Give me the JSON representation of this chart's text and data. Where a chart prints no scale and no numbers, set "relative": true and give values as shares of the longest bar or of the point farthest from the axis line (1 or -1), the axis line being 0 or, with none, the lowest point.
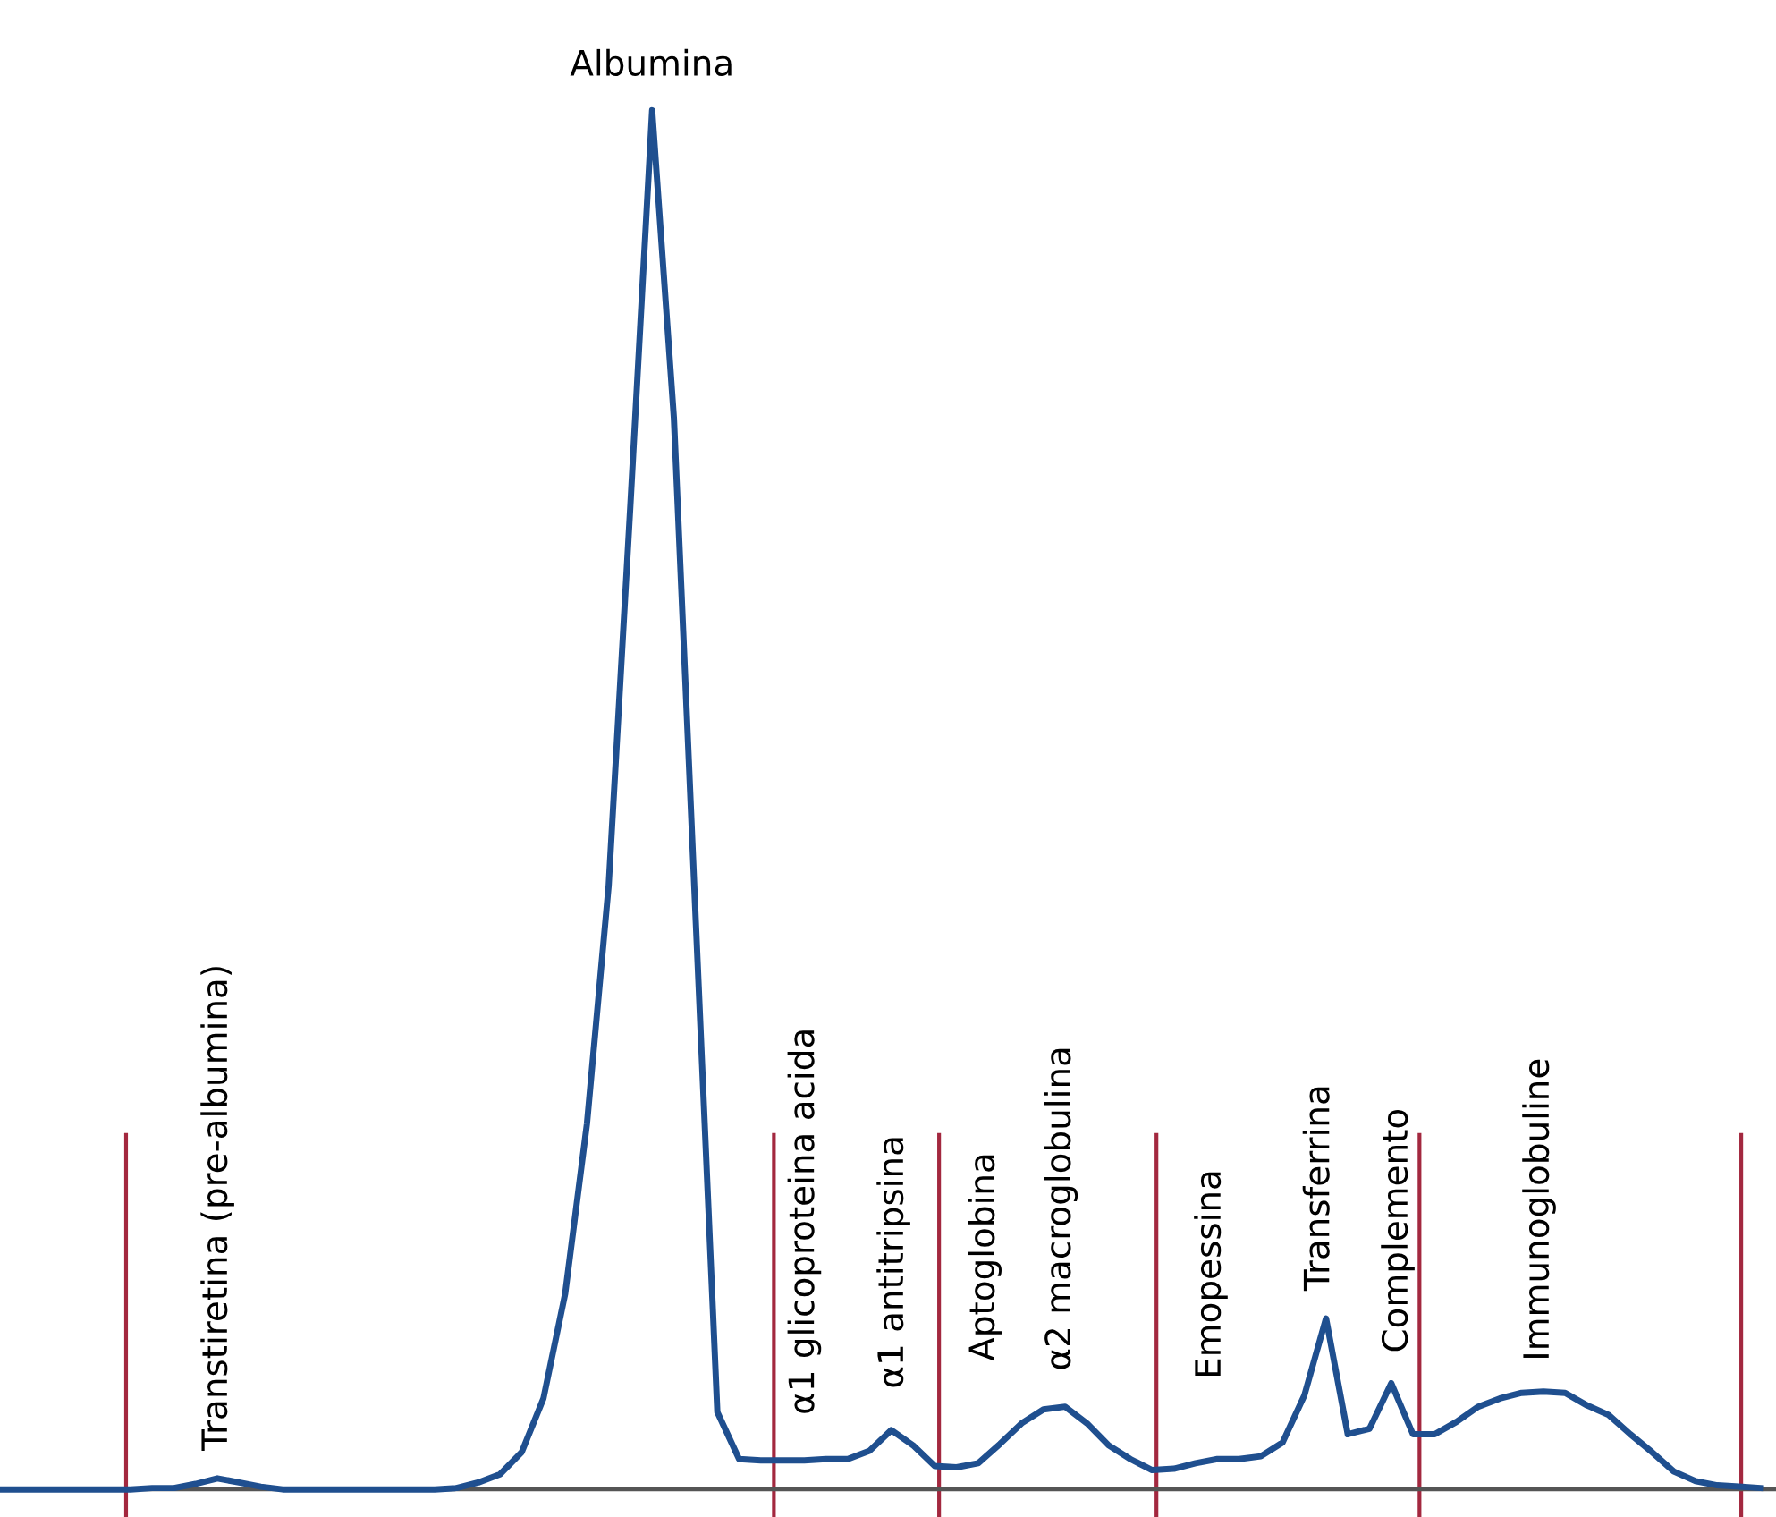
{
  "chart_data": {
    "type": "line",
    "relative": true,
    "legend": false,
    "marker": "none",
    "line_style": "solid",
    "categories": [
      null,
      null,
      null,
      null,
      null,
      null,
      null,
      null,
      null,
      null,
      null,
      null,
      null,
      null,
      null,
      null,
      null,
      null,
      null,
      null,
      null,
      null,
      null,
      null,
      null,
      null,
      null,
      null,
      null,
      null,
      null,
      null,
      null,
      null,
      null,
      null,
      null,
      null,
      null,
      null,
      null,
      null,
      null,
      null,
      null,
      null,
      null,
      null,
      null,
      null,
      null,
      null,
      null,
      null,
      null,
      null,
      null,
      null,
      null,
      null,
      null,
      null,
      null,
      null,
      null,
      null,
      null,
      null,
      null,
      null,
      null,
      null,
      null,
      null,
      null,
      null,
      null,
      null,
      null,
      null,
      null,
      null
    ],
    "series": [
      {
        "color": "#1f4f8f",
        "values": [
          0,
          0,
          0,
          0,
          0,
          0,
          0,
          0.001,
          0.001,
          0.004,
          0.008,
          0.005,
          0.002,
          0,
          0,
          0,
          0,
          0,
          0,
          0,
          0,
          0.001,
          0.005,
          0.011,
          0.027,
          0.066,
          0.142,
          0.265,
          0.438,
          0.714,
          1,
          0.777,
          0.415,
          0.056,
          0.022,
          0.021,
          0.021,
          0.021,
          0.022,
          0.022,
          0.028,
          0.043,
          0.032,
          0.017,
          0.016,
          0.019,
          0.033,
          0.048,
          0.058,
          0.06,
          0.048,
          0.032,
          0.022,
          0.014,
          0.015,
          0.019,
          0.022,
          0.022,
          0.024,
          0.034,
          0.068,
          0.124,
          0.04,
          0.044,
          0.077,
          0.04,
          0.04,
          0.049,
          0.06,
          0.066,
          0.07,
          0.071,
          0.07,
          0.061,
          0.054,
          0.04,
          0.027,
          0.013,
          0.006,
          0.003,
          0.002,
          0.001
        ]
      }
    ],
    "annotations": [
      "Albumina",
      "Transtiretina (pre-albumina)",
      "α1 glicoproteina acida",
      "α1 antitripsina",
      "Aptoglobina",
      "α2 macroglobulina",
      "Emopessina",
      "Transferrina",
      "Complemento",
      "Immunoglobuline"
    ]
  }
}
